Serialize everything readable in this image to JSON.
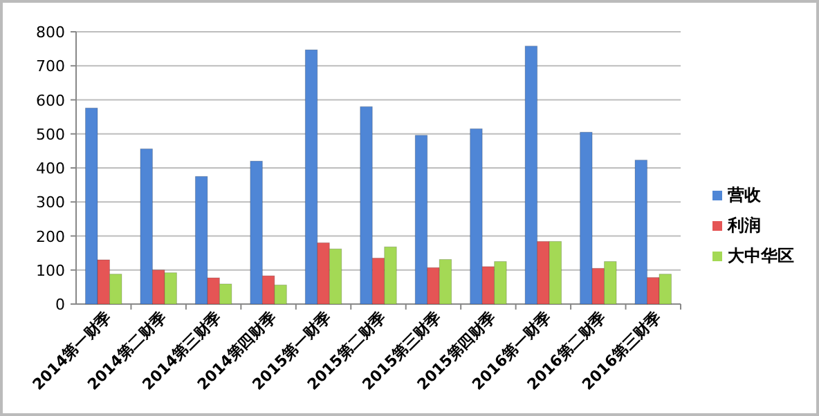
{
  "chart_data": {
    "type": "bar",
    "categories": [
      "2014第一财季",
      "2014第二财季",
      "2014第三财季",
      "2014第四财季",
      "2015第一财季",
      "2015第二财季",
      "2015第三财季",
      "2015第四财季",
      "2016第一财季",
      "2016第二财季",
      "2016第三财季"
    ],
    "series": [
      {
        "name": "营收",
        "color": "#4f86d6",
        "values": [
          576,
          456,
          375,
          420,
          747,
          580,
          496,
          515,
          758,
          505,
          423
        ]
      },
      {
        "name": "利润",
        "color": "#e55555",
        "values": [
          130,
          100,
          77,
          83,
          180,
          135,
          107,
          110,
          184,
          105,
          78
        ]
      },
      {
        "name": "大中华区",
        "color": "#a4d955",
        "values": [
          88,
          92,
          59,
          56,
          162,
          168,
          131,
          125,
          184,
          125,
          88
        ]
      }
    ],
    "ylim": [
      0,
      800
    ],
    "yticks": [
      0,
      100,
      200,
      300,
      400,
      500,
      600,
      700,
      800
    ],
    "grid": "y",
    "legend": "right"
  }
}
